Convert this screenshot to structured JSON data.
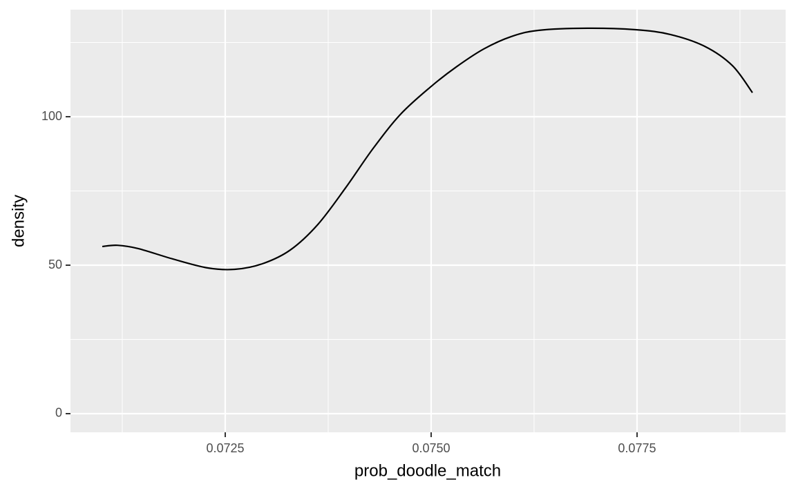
{
  "chart_data": {
    "type": "line",
    "x_label": "prob_doodle_match",
    "y_label": "density",
    "x": [
      0.071007,
      0.071191,
      0.071443,
      0.071862,
      0.072282,
      0.072617,
      0.072953,
      0.073289,
      0.073624,
      0.07396,
      0.074295,
      0.074631,
      0.075,
      0.075302,
      0.075638,
      0.075973,
      0.076309,
      0.076896,
      0.077483,
      0.077903,
      0.078322,
      0.078658,
      0.078901
    ],
    "series": [
      {
        "color": "#000000",
        "values": [
          56.3,
          56.7,
          55.6,
          52.1,
          49.1,
          48.6,
          50.5,
          55.1,
          63.7,
          76.0,
          89.3,
          100.9,
          110.2,
          116.7,
          122.8,
          127.0,
          129.1,
          129.8,
          129.3,
          127.7,
          123.7,
          117.2,
          108.1
        ]
      }
    ],
    "xlim": [
      0.070621,
      0.079304
    ],
    "xticks": [
      0.0725,
      {
        "value": 0.075,
        "label": "0.0750"
      },
      0.0775
    ],
    "ylim": [
      -6.28,
      136.05
    ],
    "yticks": [
      0,
      50,
      100
    ],
    "grid": true
  }
}
